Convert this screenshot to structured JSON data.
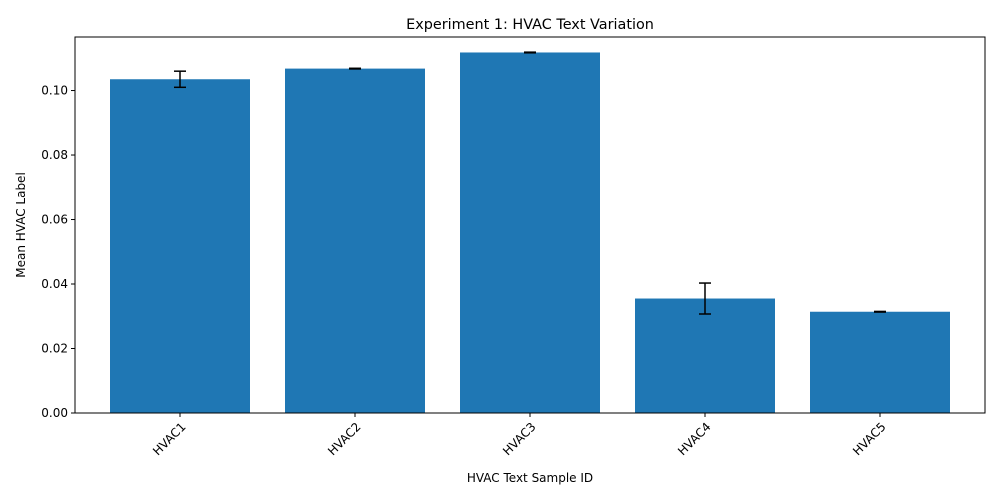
{
  "chart_data": {
    "type": "bar",
    "title": "Experiment 1: HVAC Text Variation",
    "xlabel": "HVAC Text Sample ID",
    "ylabel": "Mean HVAC Label",
    "categories": [
      "HVAC1",
      "HVAC2",
      "HVAC3",
      "HVAC4",
      "HVAC5"
    ],
    "values": [
      0.1035,
      0.1068,
      0.1118,
      0.0355,
      0.0314
    ],
    "errors": [
      0.0025,
      0.0001,
      0.0001,
      0.0048,
      0.0001
    ],
    "ylim": [
      0,
      0.1166
    ],
    "yticks": [
      0.0,
      0.02,
      0.04,
      0.06,
      0.08,
      0.1
    ],
    "ytick_labels": [
      "0.00",
      "0.02",
      "0.04",
      "0.06",
      "0.08",
      "0.10"
    ],
    "bar_color": "#1f77b4",
    "error_color": "#000000",
    "grid": false,
    "xtick_rotation": 45
  }
}
